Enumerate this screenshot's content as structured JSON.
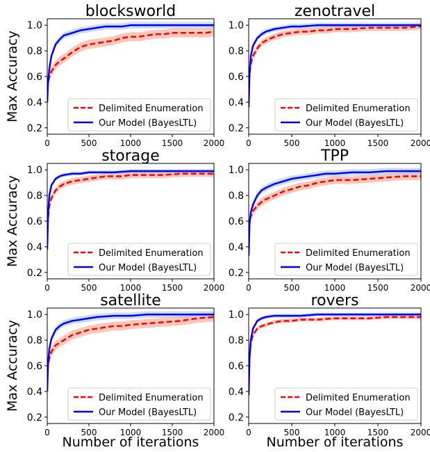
{
  "figure": {
    "ylabel": "Max Accuracy",
    "xlabel": "Number of iterations",
    "legend": {
      "placement": "lower-right",
      "entries": [
        "Delimited Enumeration",
        "Our Model (BayesLTL)"
      ]
    },
    "colors": {
      "enumeration": "#ff0000",
      "enumeration_band": "#f4a38e",
      "bayes": "#0000ff",
      "bayes_band": "#a9c4ee"
    }
  },
  "chart_data": [
    {
      "type": "line",
      "title": "blocksworld",
      "xlim": [
        0,
        2000
      ],
      "ylim": [
        0.15,
        1.05
      ],
      "xticks": [
        0,
        500,
        1000,
        1500,
        2000
      ],
      "yticks": [
        0.2,
        0.4,
        0.6,
        0.8,
        1.0
      ],
      "grid": false,
      "series": [
        {
          "name": "Delimited Enumeration",
          "style": "dashed",
          "x": [
            0,
            10,
            25,
            50,
            100,
            150,
            200,
            300,
            400,
            500,
            600,
            700,
            800,
            900,
            1000,
            1100,
            1200,
            1300,
            1400,
            1500,
            1600,
            1700,
            1800,
            1900,
            2000
          ],
          "y": [
            0.5,
            0.56,
            0.6,
            0.64,
            0.69,
            0.72,
            0.74,
            0.79,
            0.83,
            0.85,
            0.86,
            0.87,
            0.88,
            0.9,
            0.91,
            0.91,
            0.92,
            0.93,
            0.93,
            0.94,
            0.94,
            0.94,
            0.94,
            0.94,
            0.95
          ],
          "band": 0.035
        },
        {
          "name": "Our Model (BayesLTL)",
          "style": "solid",
          "x": [
            0,
            10,
            25,
            50,
            100,
            150,
            200,
            300,
            400,
            500,
            600,
            700,
            800,
            900,
            1000,
            1200,
            1400,
            1600,
            1800,
            2000
          ],
          "y": [
            0.4,
            0.55,
            0.66,
            0.76,
            0.85,
            0.89,
            0.92,
            0.94,
            0.96,
            0.97,
            0.98,
            0.99,
            0.99,
            0.99,
            1.0,
            1.0,
            1.0,
            1.0,
            1.0,
            1.0
          ],
          "band": 0.025
        }
      ]
    },
    {
      "type": "line",
      "title": "zenotravel",
      "xlim": [
        0,
        2000
      ],
      "ylim": [
        0.15,
        1.05
      ],
      "xticks": [
        0,
        500,
        1000,
        1500,
        2000
      ],
      "yticks": [
        0.2,
        0.4,
        0.6,
        0.8,
        1.0
      ],
      "grid": false,
      "series": [
        {
          "name": "Delimited Enumeration",
          "style": "dashed",
          "x": [
            0,
            10,
            25,
            50,
            100,
            150,
            200,
            300,
            400,
            500,
            600,
            700,
            800,
            900,
            1000,
            1200,
            1400,
            1600,
            1800,
            2000
          ],
          "y": [
            0.5,
            0.62,
            0.7,
            0.76,
            0.82,
            0.86,
            0.88,
            0.91,
            0.93,
            0.94,
            0.95,
            0.95,
            0.96,
            0.96,
            0.97,
            0.97,
            0.98,
            0.98,
            0.98,
            0.99
          ],
          "band": 0.025
        },
        {
          "name": "Our Model (BayesLTL)",
          "style": "solid",
          "x": [
            0,
            10,
            25,
            50,
            100,
            150,
            200,
            300,
            400,
            500,
            600,
            800,
            1000,
            1500,
            2000
          ],
          "y": [
            0.36,
            0.62,
            0.76,
            0.84,
            0.9,
            0.93,
            0.95,
            0.97,
            0.98,
            0.99,
            0.99,
            1.0,
            1.0,
            1.0,
            1.0
          ],
          "band": 0.02
        }
      ]
    },
    {
      "type": "line",
      "title": "storage",
      "xlim": [
        0,
        2000
      ],
      "ylim": [
        0.15,
        1.05
      ],
      "xticks": [
        0,
        500,
        1000,
        1500,
        2000
      ],
      "yticks": [
        0.2,
        0.4,
        0.6,
        0.8,
        1.0
      ],
      "grid": false,
      "series": [
        {
          "name": "Delimited Enumeration",
          "style": "dashed",
          "x": [
            0,
            10,
            25,
            50,
            100,
            150,
            200,
            300,
            400,
            500,
            600,
            700,
            800,
            900,
            1000,
            1200,
            1400,
            1600,
            1800,
            2000
          ],
          "y": [
            0.5,
            0.62,
            0.72,
            0.78,
            0.84,
            0.87,
            0.89,
            0.91,
            0.92,
            0.93,
            0.94,
            0.95,
            0.95,
            0.95,
            0.96,
            0.96,
            0.96,
            0.97,
            0.97,
            0.97
          ],
          "band": 0.025
        },
        {
          "name": "Our Model (BayesLTL)",
          "style": "solid",
          "x": [
            0,
            10,
            25,
            50,
            100,
            150,
            200,
            300,
            400,
            500,
            600,
            800,
            1000,
            1500,
            2000
          ],
          "y": [
            0.38,
            0.65,
            0.8,
            0.88,
            0.93,
            0.95,
            0.96,
            0.97,
            0.97,
            0.98,
            0.98,
            0.98,
            0.99,
            0.99,
            0.99
          ],
          "band": 0.015
        }
      ]
    },
    {
      "type": "line",
      "title": "TPP",
      "xlim": [
        0,
        2000
      ],
      "ylim": [
        0.15,
        1.05
      ],
      "xticks": [
        0,
        500,
        1000,
        1500,
        2000
      ],
      "yticks": [
        0.2,
        0.4,
        0.6,
        0.8,
        1.0
      ],
      "grid": false,
      "series": [
        {
          "name": "Delimited Enumeration",
          "style": "dashed",
          "x": [
            0,
            10,
            25,
            50,
            100,
            150,
            200,
            300,
            400,
            500,
            600,
            700,
            800,
            900,
            1000,
            1200,
            1400,
            1600,
            1800,
            2000
          ],
          "y": [
            0.55,
            0.6,
            0.64,
            0.68,
            0.72,
            0.75,
            0.77,
            0.8,
            0.83,
            0.85,
            0.87,
            0.88,
            0.9,
            0.91,
            0.92,
            0.92,
            0.93,
            0.94,
            0.95,
            0.95
          ],
          "band": 0.03
        },
        {
          "name": "Our Model (BayesLTL)",
          "style": "solid",
          "x": [
            0,
            10,
            25,
            50,
            100,
            150,
            200,
            300,
            400,
            500,
            600,
            700,
            800,
            900,
            1000,
            1200,
            1400,
            1600,
            1800,
            2000
          ],
          "y": [
            0.33,
            0.58,
            0.67,
            0.73,
            0.8,
            0.84,
            0.86,
            0.89,
            0.91,
            0.93,
            0.94,
            0.95,
            0.96,
            0.97,
            0.97,
            0.98,
            0.98,
            0.99,
            0.99,
            0.99
          ],
          "band": 0.025
        }
      ]
    },
    {
      "type": "line",
      "title": "satellite",
      "xlim": [
        0,
        2000
      ],
      "ylim": [
        0.15,
        1.05
      ],
      "xticks": [
        0,
        500,
        1000,
        1500,
        2000
      ],
      "yticks": [
        0.2,
        0.4,
        0.6,
        0.8,
        1.0
      ],
      "grid": false,
      "series": [
        {
          "name": "Delimited Enumeration",
          "style": "dashed",
          "x": [
            0,
            10,
            25,
            50,
            100,
            150,
            200,
            300,
            400,
            500,
            600,
            700,
            800,
            900,
            1000,
            1200,
            1400,
            1600,
            1800,
            2000
          ],
          "y": [
            0.5,
            0.6,
            0.66,
            0.71,
            0.76,
            0.78,
            0.8,
            0.84,
            0.86,
            0.88,
            0.89,
            0.9,
            0.91,
            0.91,
            0.92,
            0.93,
            0.94,
            0.95,
            0.97,
            0.98
          ],
          "band": 0.035
        },
        {
          "name": "Our Model (BayesLTL)",
          "style": "solid",
          "x": [
            0,
            10,
            25,
            50,
            100,
            150,
            200,
            300,
            400,
            500,
            600,
            800,
            1000,
            1200,
            1500,
            2000
          ],
          "y": [
            0.4,
            0.62,
            0.73,
            0.81,
            0.88,
            0.91,
            0.93,
            0.95,
            0.96,
            0.97,
            0.98,
            0.99,
            0.99,
            1.0,
            1.0,
            1.0
          ],
          "band": 0.025
        }
      ]
    },
    {
      "type": "line",
      "title": "rovers",
      "xlim": [
        0,
        2000
      ],
      "ylim": [
        0.15,
        1.05
      ],
      "xticks": [
        0,
        500,
        1000,
        1500,
        2000
      ],
      "yticks": [
        0.2,
        0.4,
        0.6,
        0.8,
        1.0
      ],
      "grid": false,
      "series": [
        {
          "name": "Delimited Enumeration",
          "style": "dashed",
          "x": [
            0,
            10,
            25,
            50,
            100,
            150,
            200,
            300,
            400,
            500,
            600,
            800,
            1000,
            1200,
            1400,
            1600,
            1800,
            2000
          ],
          "y": [
            0.6,
            0.7,
            0.78,
            0.84,
            0.89,
            0.91,
            0.92,
            0.94,
            0.95,
            0.95,
            0.96,
            0.96,
            0.97,
            0.97,
            0.97,
            0.98,
            0.98,
            0.98
          ],
          "band": 0.015
        },
        {
          "name": "Our Model (BayesLTL)",
          "style": "solid",
          "x": [
            0,
            10,
            25,
            50,
            100,
            150,
            200,
            300,
            400,
            600,
            800,
            1000,
            1500,
            2000
          ],
          "y": [
            0.37,
            0.66,
            0.8,
            0.89,
            0.95,
            0.97,
            0.98,
            0.99,
            0.99,
            0.99,
            1.0,
            1.0,
            1.0,
            1.0
          ],
          "band": 0.015
        }
      ]
    }
  ]
}
